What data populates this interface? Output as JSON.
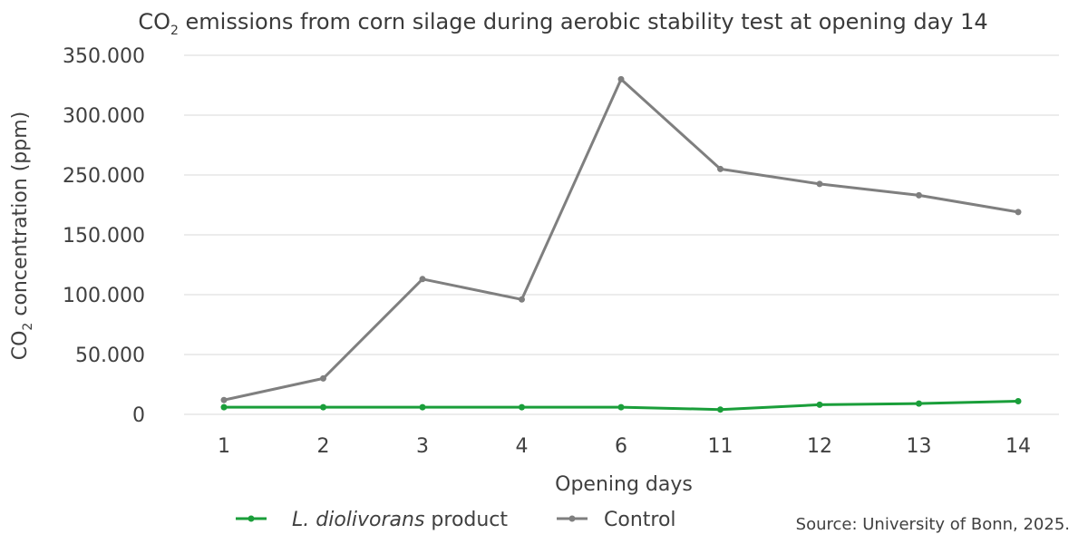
{
  "chart_data": {
    "type": "line",
    "title": {
      "prefix": "CO",
      "subscript": "2",
      "rest": " emissions from corn silage during aerobic stability test at opening day 14"
    },
    "xlabel": "Opening days",
    "ylabel": {
      "prefix": "CO",
      "subscript": "2",
      "rest": " concentration (ppm)"
    },
    "categories": [
      "1",
      "2",
      "3",
      "4",
      "6",
      "11",
      "12",
      "13",
      "14"
    ],
    "y_tick_labels": [
      "0",
      "50.000",
      "100.000",
      "150.000",
      "250.000",
      "300.000",
      "350.000"
    ],
    "series": [
      {
        "name_italic": "L. diolivorans",
        "name_rest": " product",
        "color": "#1a9e3a",
        "values": [
          6000,
          6000,
          6000,
          6000,
          6000,
          4000,
          8000,
          9000,
          11000
        ]
      },
      {
        "name": "Control",
        "color": "#7f7f7f",
        "values": [
          12000,
          30000,
          113000,
          96000,
          330000,
          255000,
          235000,
          216000,
          188000
        ]
      }
    ],
    "grid": true,
    "legend_position": "bottom-left",
    "source": "Source: University of Bonn, 2025."
  }
}
